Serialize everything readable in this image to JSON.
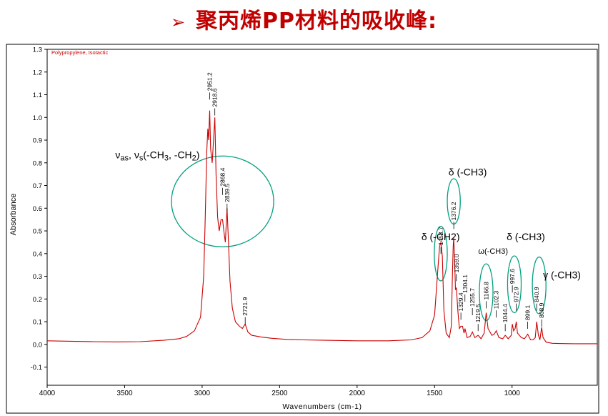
{
  "slide": {
    "title_arrow": "➢",
    "title": "聚丙烯PP材料的吸收峰:"
  },
  "chart_data": {
    "type": "line",
    "series_label": "Polypropylene, Isotactic",
    "xlabel": "Wavenumbers (cm-1)",
    "ylabel": "Absorbance",
    "xlim": [
      4000,
      450
    ],
    "ylim": [
      -0.18,
      1.3
    ],
    "x_reversed": true,
    "x_ticks": [
      4000,
      3500,
      3000,
      2500,
      2000,
      1500,
      1000
    ],
    "y_ticks": [
      -0.1,
      0.0,
      0.1,
      0.2,
      0.3,
      0.4,
      0.5,
      0.6,
      0.7,
      0.8,
      0.9,
      1.0,
      1.1,
      1.2,
      1.3
    ],
    "y_tick_labels": [
      "-0.1",
      "0.0",
      "0.1",
      "0.2",
      "0.3",
      "0.4",
      "0.5",
      "0.6",
      "0.7",
      "0.8",
      "0.9",
      "1.0",
      "1.1",
      "1.2",
      "1.3"
    ],
    "line_color": "#cc0000",
    "annotation_color": "#00a080",
    "spectrum": [
      [
        4000,
        0.016
      ],
      [
        3850,
        0.014
      ],
      [
        3700,
        0.012
      ],
      [
        3550,
        0.011
      ],
      [
        3400,
        0.012
      ],
      [
        3250,
        0.018
      ],
      [
        3150,
        0.025
      ],
      [
        3100,
        0.035
      ],
      [
        3050,
        0.06
      ],
      [
        3010,
        0.12
      ],
      [
        2990,
        0.3
      ],
      [
        2980,
        0.55
      ],
      [
        2970,
        0.85
      ],
      [
        2963,
        0.95
      ],
      [
        2958,
        0.9
      ],
      [
        2951,
        1.03
      ],
      [
        2945,
        0.86
      ],
      [
        2935,
        0.8
      ],
      [
        2928,
        0.88
      ],
      [
        2918,
        1.0
      ],
      [
        2910,
        0.75
      ],
      [
        2900,
        0.56
      ],
      [
        2890,
        0.5
      ],
      [
        2878,
        0.55
      ],
      [
        2868,
        0.55
      ],
      [
        2860,
        0.5
      ],
      [
        2850,
        0.45
      ],
      [
        2839,
        0.6
      ],
      [
        2830,
        0.45
      ],
      [
        2820,
        0.28
      ],
      [
        2805,
        0.16
      ],
      [
        2785,
        0.1
      ],
      [
        2760,
        0.08
      ],
      [
        2740,
        0.07
      ],
      [
        2722,
        0.09
      ],
      [
        2705,
        0.055
      ],
      [
        2680,
        0.04
      ],
      [
        2620,
        0.033
      ],
      [
        2550,
        0.027
      ],
      [
        2450,
        0.022
      ],
      [
        2350,
        0.02
      ],
      [
        2200,
        0.018
      ],
      [
        2000,
        0.016
      ],
      [
        1800,
        0.016
      ],
      [
        1650,
        0.02
      ],
      [
        1580,
        0.03
      ],
      [
        1530,
        0.06
      ],
      [
        1500,
        0.13
      ],
      [
        1480,
        0.32
      ],
      [
        1468,
        0.43
      ],
      [
        1459,
        0.45
      ],
      [
        1450,
        0.39
      ],
      [
        1440,
        0.15
      ],
      [
        1425,
        0.05
      ],
      [
        1405,
        0.03
      ],
      [
        1392,
        0.08
      ],
      [
        1385,
        0.3
      ],
      [
        1380,
        0.43
      ],
      [
        1376,
        0.47
      ],
      [
        1370,
        0.35
      ],
      [
        1365,
        0.24
      ],
      [
        1359,
        0.25
      ],
      [
        1350,
        0.15
      ],
      [
        1340,
        0.07
      ],
      [
        1330,
        0.08
      ],
      [
        1320,
        0.08
      ],
      [
        1310,
        0.05
      ],
      [
        1304,
        0.07
      ],
      [
        1290,
        0.03
      ],
      [
        1270,
        0.035
      ],
      [
        1256,
        0.055
      ],
      [
        1240,
        0.03
      ],
      [
        1219,
        0.04
      ],
      [
        1200,
        0.025
      ],
      [
        1180,
        0.05
      ],
      [
        1167,
        0.14
      ],
      [
        1155,
        0.07
      ],
      [
        1130,
        0.04
      ],
      [
        1115,
        0.045
      ],
      [
        1102,
        0.06
      ],
      [
        1085,
        0.03
      ],
      [
        1060,
        0.025
      ],
      [
        1044,
        0.04
      ],
      [
        1025,
        0.025
      ],
      [
        1005,
        0.04
      ],
      [
        998,
        0.09
      ],
      [
        990,
        0.06
      ],
      [
        980,
        0.07
      ],
      [
        973,
        0.1
      ],
      [
        965,
        0.05
      ],
      [
        940,
        0.03
      ],
      [
        920,
        0.025
      ],
      [
        899,
        0.045
      ],
      [
        880,
        0.02
      ],
      [
        865,
        0.02
      ],
      [
        850,
        0.03
      ],
      [
        841,
        0.1
      ],
      [
        830,
        0.04
      ],
      [
        820,
        0.02
      ],
      [
        809,
        0.075
      ],
      [
        800,
        0.03
      ],
      [
        780,
        0.01
      ],
      [
        740,
        0.005
      ],
      [
        700,
        0.004
      ],
      [
        600,
        0.003
      ],
      [
        500,
        0.003
      ],
      [
        450,
        0.003
      ]
    ],
    "peaks": [
      {
        "x": 2951,
        "label": "2951.2",
        "y": 1.11
      },
      {
        "x": 2918,
        "label": "2918.6",
        "y": 1.04
      },
      {
        "x": 2868,
        "label": "2868.4",
        "y": 0.69
      },
      {
        "x": 2839,
        "label": "2839.5",
        "y": 0.62
      },
      {
        "x": 2722,
        "label": "2721.9",
        "y": 0.12
      },
      {
        "x": 1459,
        "label": "1458.7",
        "y": 0.43
      },
      {
        "x": 1376,
        "label": "1376.2",
        "y": 0.54
      },
      {
        "x": 1359,
        "label": "1359.0",
        "y": 0.31
      },
      {
        "x": 1330,
        "label": "1329.4",
        "y": 0.14
      },
      {
        "x": 1304,
        "label": "1304.1",
        "y": 0.22
      },
      {
        "x": 1256,
        "label": "1255.7",
        "y": 0.16
      },
      {
        "x": 1219,
        "label": "1219.5",
        "y": 0.09
      },
      {
        "x": 1167,
        "label": "1166.8",
        "y": 0.19
      },
      {
        "x": 1102,
        "label": "1102.3",
        "y": 0.15
      },
      {
        "x": 1044,
        "label": "1044.4",
        "y": 0.09
      },
      {
        "x": 998,
        "label": "997.6",
        "y": 0.26
      },
      {
        "x": 973,
        "label": "972.9",
        "y": 0.18
      },
      {
        "x": 899,
        "label": "899.1",
        "y": 0.1
      },
      {
        "x": 841,
        "label": "840.9",
        "y": 0.18
      },
      {
        "x": 809,
        "label": "808.9",
        "y": 0.11
      }
    ],
    "annotations": [
      {
        "text_html": "ν<tspan font-size='11' dy='3'>as</tspan><tspan dy='-3'>, ν</tspan><tspan font-size='11' dy='3'>s</tspan><tspan dy='-3'>(-CH</tspan><tspan font-size='11' dy='3'>3</tspan><tspan dy='-3'>, -CH</tspan><tspan font-size='11' dy='3'>2</tspan><tspan dy='-3'>)</tspan>",
        "text": "νas, νs(-CH3, -CH2)",
        "x": 3560,
        "y": 0.82
      },
      {
        "text": "δ (-CH3)",
        "x": 1410,
        "y": 0.745
      },
      {
        "text": "δ (-CH2)",
        "x": 1585,
        "y": 0.46
      },
      {
        "text": "ω(-CH3)",
        "x": 1218,
        "y": 0.4,
        "small": true
      },
      {
        "text": "δ (-CH3)",
        "x": 1035,
        "y": 0.46
      },
      {
        "text": "γ (-CH3)",
        "x": 800,
        "y": 0.29
      }
    ],
    "ellipses": [
      {
        "cx": 2868,
        "cy": 0.63,
        "rx": 330,
        "ry": 0.2
      },
      {
        "cx": 1376,
        "cy": 0.63,
        "rx": 42,
        "ry": 0.1
      },
      {
        "cx": 1460,
        "cy": 0.4,
        "rx": 42,
        "ry": 0.12
      },
      {
        "cx": 1167,
        "cy": 0.23,
        "rx": 44,
        "ry": 0.125
      },
      {
        "cx": 985,
        "cy": 0.265,
        "rx": 44,
        "ry": 0.125
      },
      {
        "cx": 825,
        "cy": 0.26,
        "rx": 44,
        "ry": 0.125
      }
    ]
  }
}
